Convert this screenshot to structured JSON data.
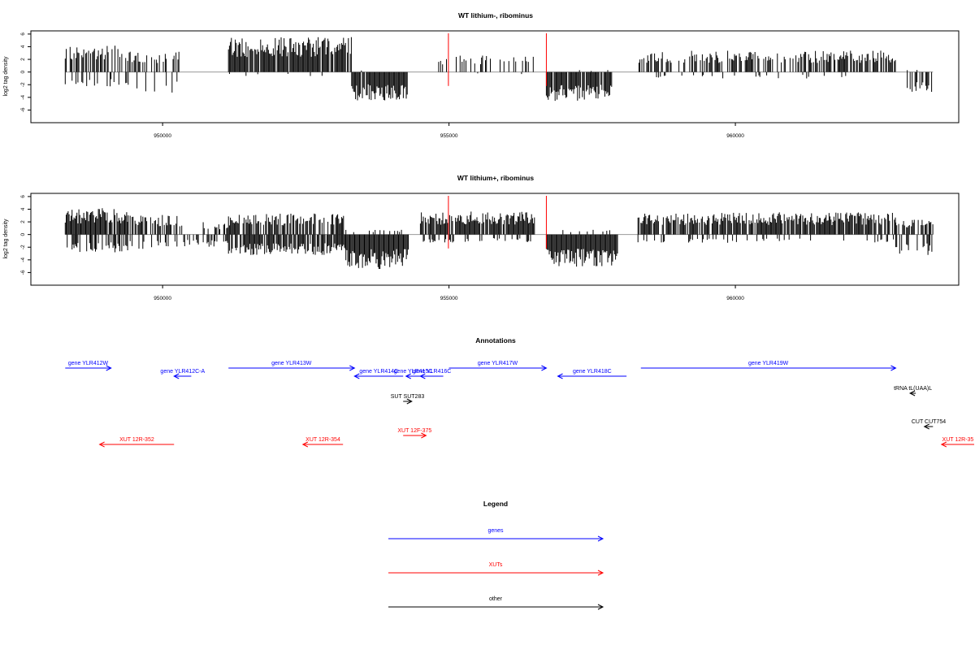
{
  "chart_data": [
    {
      "type": "bar",
      "title": "WT lithium-, ribominus",
      "ylabel": "log2 tag density",
      "xlabel": "",
      "yticks": [
        "-6",
        "-4",
        "-2",
        "0",
        "2",
        "4",
        "6"
      ],
      "xticks": [
        "950000",
        "955000",
        "960000"
      ],
      "ylim": [
        -8,
        6.5
      ],
      "xlim": [
        947700,
        963900
      ],
      "markers": [
        954990,
        956700
      ],
      "grid": false,
      "segments": [
        {
          "x0": 948300,
          "x1": 949400,
          "pos": 3.2,
          "neg": -1.8,
          "pd": 0.55,
          "nd": 0.3
        },
        {
          "x0": 949400,
          "x1": 950300,
          "pos": 2.5,
          "neg": -2.5,
          "pd": 0.35,
          "nd": 0.2
        },
        {
          "x0": 951150,
          "x1": 953300,
          "pos": 4.3,
          "neg": -0.5,
          "pd": 0.95,
          "nd": 0.05
        },
        {
          "x0": 953300,
          "x1": 954300,
          "pos": 0.2,
          "neg": -3.5,
          "pd": 0.02,
          "nd": 0.95
        },
        {
          "x0": 954700,
          "x1": 956500,
          "pos": 2.2,
          "neg": -0.3,
          "pd": 0.25,
          "nd": 0.02
        },
        {
          "x0": 956700,
          "x1": 957850,
          "pos": 0.3,
          "neg": -3.5,
          "pd": 0.05,
          "nd": 0.9
        },
        {
          "x0": 958300,
          "x1": 962800,
          "pos": 2.6,
          "neg": -0.8,
          "pd": 0.6,
          "nd": 0.08
        },
        {
          "x0": 963000,
          "x1": 963450,
          "pos": 0.3,
          "neg": -2.5,
          "pd": 0.05,
          "nd": 0.6
        }
      ]
    },
    {
      "type": "bar",
      "title": "WT lithium+, ribominus",
      "ylabel": "log2 tag density",
      "xlabel": "",
      "yticks": [
        "-6",
        "-4",
        "-2",
        "0",
        "2",
        "4",
        "6"
      ],
      "xticks": [
        "950000",
        "955000",
        "960000"
      ],
      "ylim": [
        -8,
        6.5
      ],
      "xlim": [
        947700,
        963900
      ],
      "markers": [
        954990,
        956700
      ],
      "grid": false,
      "segments": [
        {
          "x0": 948300,
          "x1": 949400,
          "pos": 3.2,
          "neg": -2.2,
          "pd": 0.95,
          "nd": 0.5
        },
        {
          "x0": 949400,
          "x1": 950300,
          "pos": 2.4,
          "neg": -1.8,
          "pd": 0.7,
          "nd": 0.4
        },
        {
          "x0": 950300,
          "x1": 951150,
          "pos": 1.5,
          "neg": -1.5,
          "pd": 0.3,
          "nd": 0.3
        },
        {
          "x0": 951150,
          "x1": 953200,
          "pos": 2.6,
          "neg": -2.5,
          "pd": 0.7,
          "nd": 0.8
        },
        {
          "x0": 953200,
          "x1": 954300,
          "pos": 0.6,
          "neg": -4.2,
          "pd": 0.2,
          "nd": 1.0
        },
        {
          "x0": 954500,
          "x1": 956500,
          "pos": 2.8,
          "neg": -1.0,
          "pd": 0.9,
          "nd": 0.3
        },
        {
          "x0": 956700,
          "x1": 957950,
          "pos": 0.6,
          "neg": -4.0,
          "pd": 0.1,
          "nd": 1.0
        },
        {
          "x0": 958300,
          "x1": 962800,
          "pos": 2.7,
          "neg": -1.0,
          "pd": 0.85,
          "nd": 0.2
        },
        {
          "x0": 962800,
          "x1": 963450,
          "pos": 1.8,
          "neg": -2.5,
          "pd": 0.5,
          "nd": 0.5
        }
      ]
    }
  ],
  "annotations": {
    "title": "Annotations",
    "features": [
      {
        "label": "gene YLR412W",
        "x0": 948300,
        "x1": 949100,
        "dir": "right",
        "color": "#0000ff",
        "row": 0
      },
      {
        "label": "gene YLR412C-A",
        "x0": 950200,
        "x1": 950500,
        "dir": "left",
        "color": "#0000ff",
        "row": 1
      },
      {
        "label": "gene YLR413W",
        "x0": 951150,
        "x1": 953350,
        "dir": "right",
        "color": "#0000ff",
        "row": 0
      },
      {
        "label": "gene YLR414C",
        "x0": 953350,
        "x1": 954200,
        "dir": "left",
        "color": "#0000ff",
        "row": 1
      },
      {
        "label": "gene YLR415C",
        "x0": 954250,
        "x1": 954500,
        "dir": "left",
        "color": "#0000ff",
        "row": 1
      },
      {
        "label": "gene YLR416C",
        "x0": 954500,
        "x1": 954900,
        "dir": "left",
        "color": "#0000ff",
        "row": 1
      },
      {
        "label": "gene YLR417W",
        "x0": 955000,
        "x1": 956700,
        "dir": "right",
        "color": "#0000ff",
        "row": 0
      },
      {
        "label": "gene YLR418C",
        "x0": 956900,
        "x1": 958100,
        "dir": "left",
        "color": "#0000ff",
        "row": 1
      },
      {
        "label": "gene YLR419W",
        "x0": 958350,
        "x1": 962800,
        "dir": "right",
        "color": "#0000ff",
        "row": 0
      },
      {
        "label": "tRNA tL(UAA)L",
        "x0": 963050,
        "x1": 963150,
        "dir": "left",
        "color": "#000000",
        "row": 2
      },
      {
        "label": "SUT SUT283",
        "x0": 954200,
        "x1": 954350,
        "dir": "right",
        "color": "#000000",
        "row": 3
      },
      {
        "label": "CUT CUT754",
        "x0": 963300,
        "x1": 963450,
        "dir": "left",
        "color": "#000000",
        "row": 4
      },
      {
        "label": "XUT 12F-375",
        "x0": 954200,
        "x1": 954600,
        "dir": "right",
        "color": "#ff0000",
        "row": 5
      },
      {
        "label": "XUT 12R-352",
        "x0": 948900,
        "x1": 950200,
        "dir": "left",
        "color": "#ff0000",
        "row": 6
      },
      {
        "label": "XUT 12R-354",
        "x0": 952450,
        "x1": 953150,
        "dir": "left",
        "color": "#ff0000",
        "row": 6
      },
      {
        "label": "XUT 12R-35",
        "x0": 963600,
        "x1": 964400,
        "dir": "left",
        "color": "#ff0000",
        "row": 6
      }
    ]
  },
  "legend": {
    "title": "Legend",
    "items": [
      {
        "label": "genes",
        "color": "#0000ff"
      },
      {
        "label": "XUTs",
        "color": "#ff0000"
      },
      {
        "label": "other",
        "color": "#000000"
      }
    ]
  }
}
